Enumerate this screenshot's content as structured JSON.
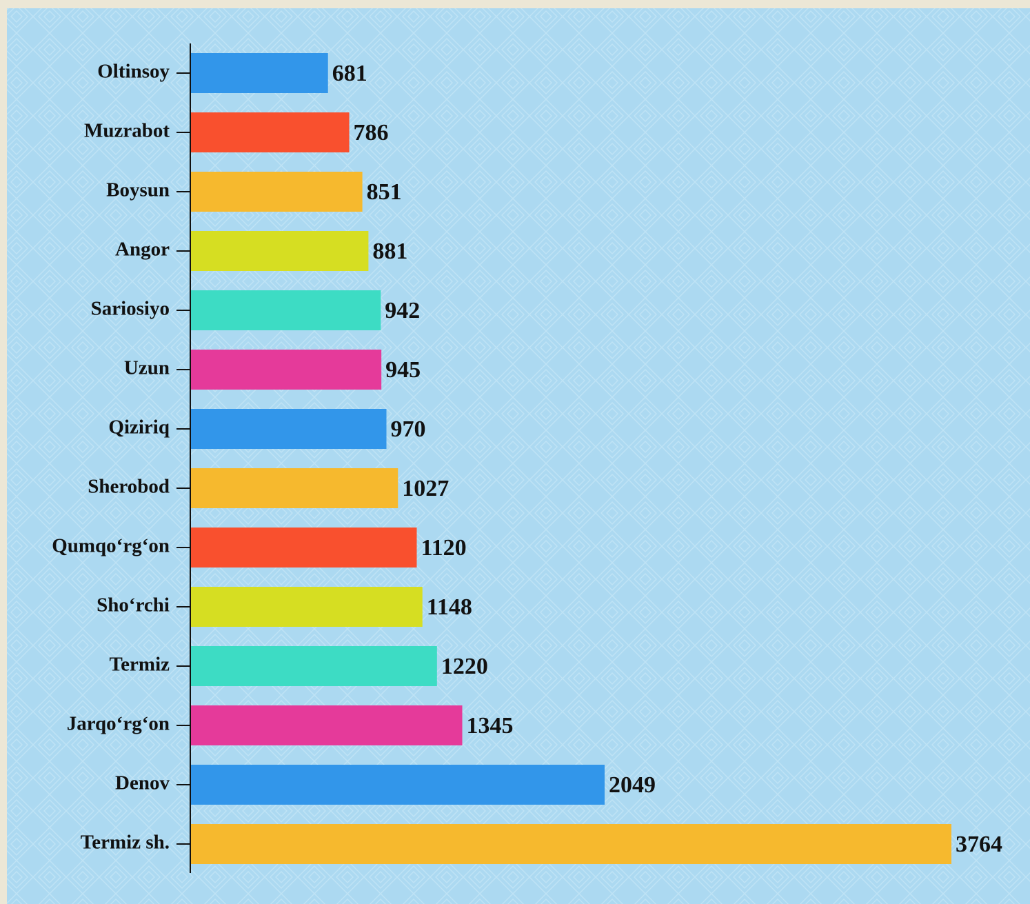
{
  "chart_data": {
    "type": "bar",
    "orientation": "horizontal",
    "categories": [
      "Oltinsoy",
      "Muzrabot",
      "Boysun",
      "Angor",
      "Sariosiyo",
      "Uzun",
      "Qiziriq",
      "Sherobod",
      "Qumqo‘rg‘on",
      "Sho‘rchi",
      "Termiz",
      "Jarqo‘rg‘on",
      "Denov",
      "Termiz sh."
    ],
    "values": [
      681,
      786,
      851,
      881,
      942,
      945,
      970,
      1027,
      1120,
      1148,
      1220,
      1345,
      2049,
      3764
    ],
    "colors": [
      "#3296ea",
      "#f9502e",
      "#f6b92e",
      "#d6de22",
      "#3ddcc4",
      "#e53a9a",
      "#3296ea",
      "#f6b92e",
      "#f9502e",
      "#d6de22",
      "#3ddcc4",
      "#e53a9a",
      "#3296ea",
      "#f6b92e"
    ],
    "grid": false
  }
}
